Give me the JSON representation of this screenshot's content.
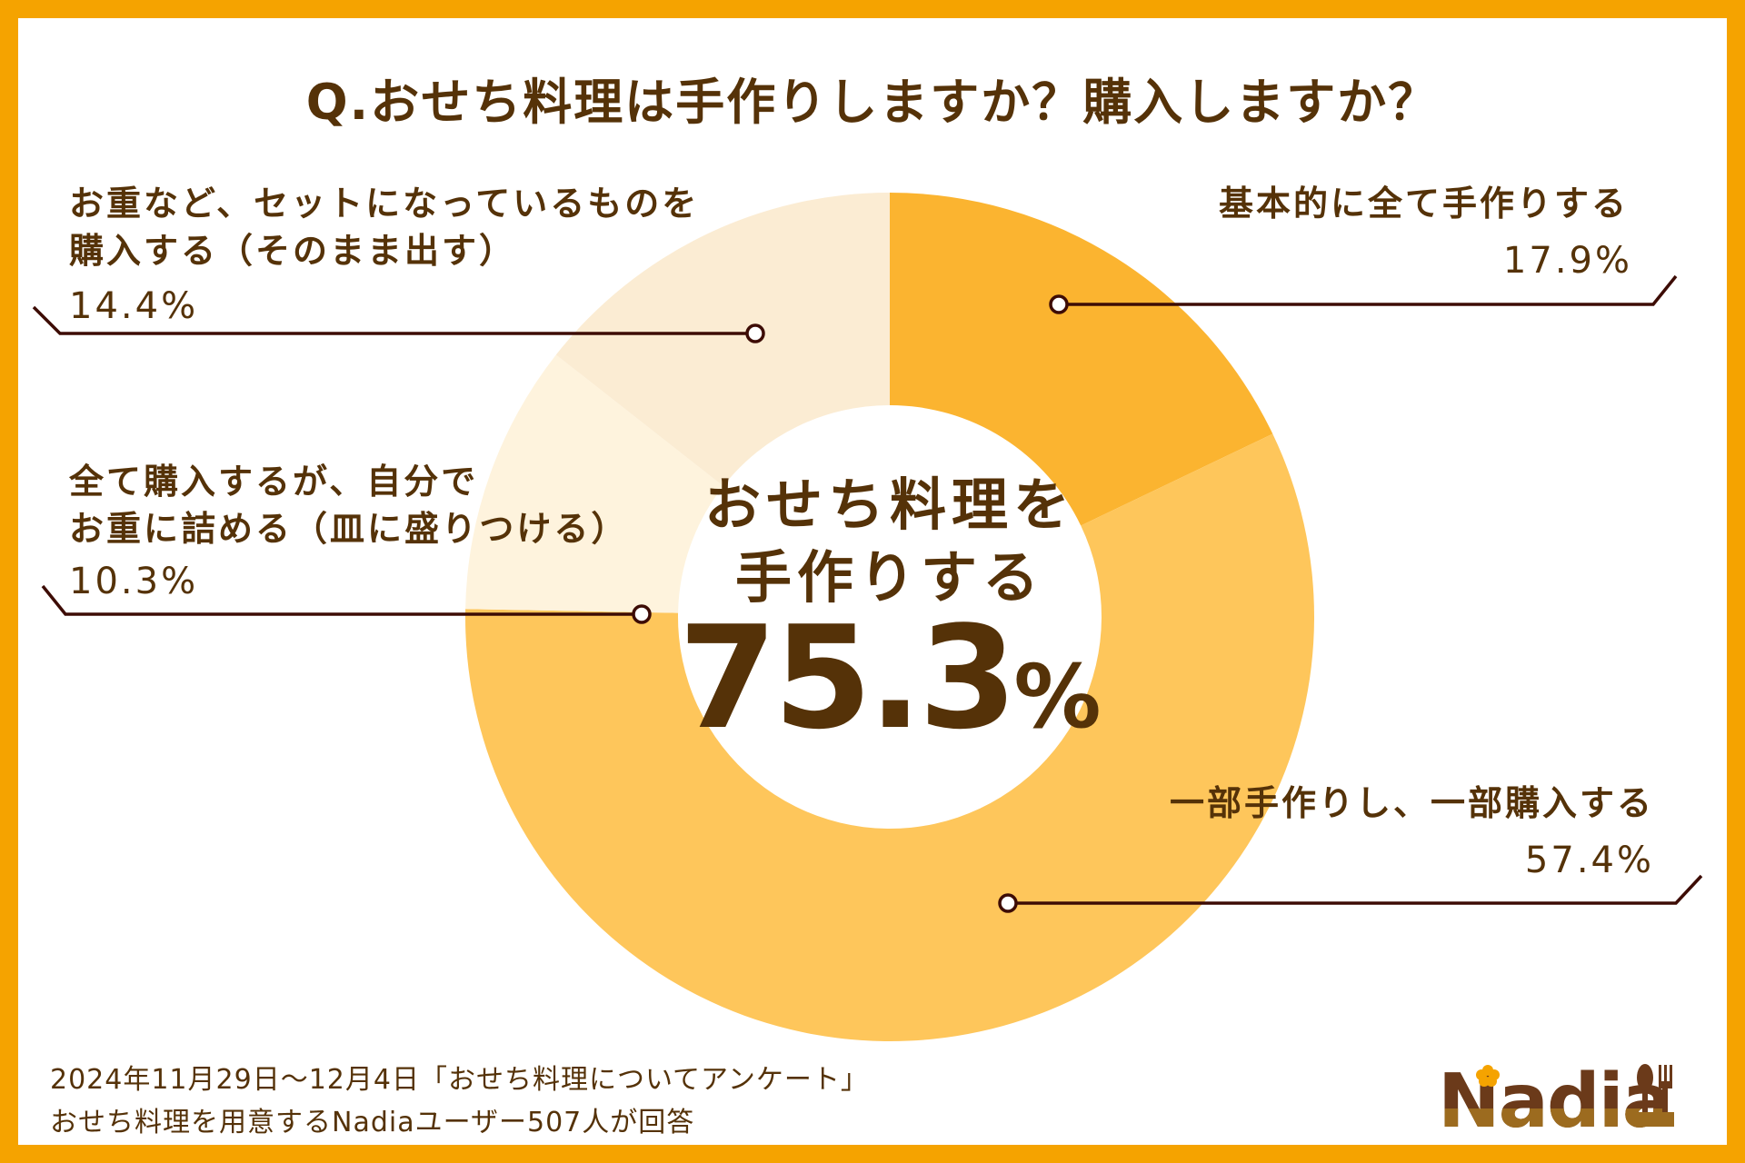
{
  "title": "Q.おせち料理は手作りしますか？購入しますか？",
  "center": {
    "line1": "おせち料理を",
    "line2": "手作りする",
    "value": "75.3",
    "unit": "%"
  },
  "labels": {
    "homemade_all": {
      "line1": "基本的に全て手作りする",
      "pct": "17.9%"
    },
    "partly": {
      "line1": "一部手作りし、一部購入する",
      "pct": "57.4%"
    },
    "buy_and_pack": {
      "line1": "全て購入するが、自分で",
      "line2": "お重に詰める（皿に盛りつける）",
      "pct": "10.3%"
    },
    "buy_set": {
      "line1": "お重など、セットになっているものを",
      "line2": "購入する（そのまま出す）",
      "pct": "14.4%"
    }
  },
  "footer": {
    "line1": "2024年11月29日～12月4日「おせち料理についてアンケート」",
    "line2": "おせち料理を用意するNadiaユーザー507人が回答"
  },
  "logo": {
    "text": "Nadia",
    "icon": "spoon-fork-icon"
  },
  "colors": {
    "border": "#F5A300",
    "text": "#553208",
    "leader": "#3D0C05"
  },
  "chart_data": {
    "type": "pie",
    "variant": "donut",
    "title": "Q.おせち料理は手作りしますか？購入しますか？",
    "categories": [
      "基本的に全て手作りする",
      "一部手作りし、一部購入する",
      "全て購入するが、自分でお重に詰める（皿に盛りつける）",
      "お重など、セットになっているものを購入する（そのまま出す）"
    ],
    "values": [
      17.9,
      57.4,
      10.3,
      14.4
    ],
    "colors": [
      "#FBB430",
      "#FEC65B",
      "#FEF3DD",
      "#FBECD3"
    ],
    "start_angle_deg": 0,
    "direction": "clockwise",
    "center_annotation": "おせち料理を手作りする 75.3%",
    "unit": "%",
    "sample_note": "おせち料理を用意するNadiaユーザー507人が回答",
    "period": "2024年11月29日～12月4日"
  }
}
